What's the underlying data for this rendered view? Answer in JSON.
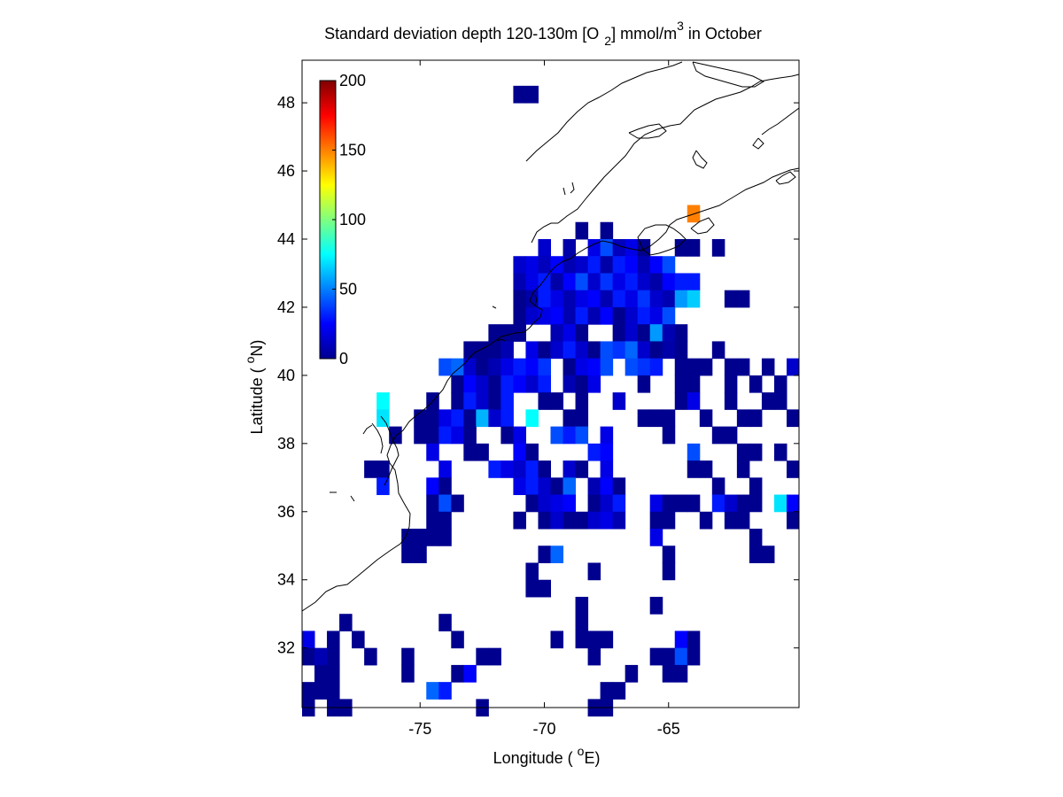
{
  "chart_data": {
    "type": "heatmap",
    "title": {
      "main": "Standard deviation depth 120-130m [O",
      "sub": "2",
      "mid": "] mmol/m",
      "sup": "3",
      "tail": " in October"
    },
    "xlabel": {
      "pre": "Longitude ( ",
      "sup": "o",
      "post": "E)"
    },
    "ylabel": {
      "pre": "Latitude ( ",
      "sup": "o",
      "post": "N)"
    },
    "xlim": [
      -79.75,
      -59.75
    ],
    "ylim": [
      30.25,
      49.25
    ],
    "xticks": [
      -75,
      -70,
      -65
    ],
    "yticks": [
      32,
      34,
      36,
      38,
      40,
      42,
      44,
      46,
      48
    ],
    "colorbar": {
      "min": 0,
      "max": 200,
      "ticks": [
        0,
        50,
        100,
        150,
        200
      ],
      "colormap": "jet"
    },
    "cell_size_deg": 0.5,
    "cells": [
      [
        -71,
        48.25,
        3
      ],
      [
        -70.5,
        48.25,
        3
      ],
      [
        -64,
        44.75,
        150
      ],
      [
        -68.5,
        44.25,
        3
      ],
      [
        -67.5,
        44.25,
        3
      ],
      [
        -70,
        43.75,
        15
      ],
      [
        -69,
        43.75,
        8
      ],
      [
        -68,
        43.75,
        20
      ],
      [
        -67.5,
        43.75,
        40
      ],
      [
        -67,
        43.75,
        12
      ],
      [
        -66.5,
        43.75,
        20
      ],
      [
        -66,
        43.75,
        3
      ],
      [
        -64.5,
        43.75,
        3
      ],
      [
        -64,
        43.75,
        3
      ],
      [
        -63,
        43.75,
        3
      ],
      [
        -71,
        43.25,
        15
      ],
      [
        -70.5,
        43.25,
        20
      ],
      [
        -70,
        43.25,
        12
      ],
      [
        -69.5,
        43.25,
        25
      ],
      [
        -69,
        43.25,
        10
      ],
      [
        -68.5,
        43.25,
        15
      ],
      [
        -68,
        43.25,
        30
      ],
      [
        -67.5,
        43.25,
        8
      ],
      [
        -67,
        43.25,
        30
      ],
      [
        -66.5,
        43.25,
        25
      ],
      [
        -66,
        43.25,
        10
      ],
      [
        -65.5,
        43.25,
        25
      ],
      [
        -65,
        43.25,
        40
      ],
      [
        -71,
        42.75,
        10
      ],
      [
        -70.5,
        42.75,
        20
      ],
      [
        -70,
        42.75,
        30
      ],
      [
        -69.5,
        42.75,
        8
      ],
      [
        -69,
        42.75,
        25
      ],
      [
        -68.5,
        42.75,
        40
      ],
      [
        -68,
        42.75,
        15
      ],
      [
        -67.5,
        42.75,
        35
      ],
      [
        -67,
        42.75,
        20
      ],
      [
        -66.5,
        42.75,
        30
      ],
      [
        -66,
        42.75,
        15
      ],
      [
        -65.5,
        42.75,
        8
      ],
      [
        -65,
        42.75,
        25
      ],
      [
        -64.5,
        42.75,
        30
      ],
      [
        -64,
        42.75,
        30
      ],
      [
        -71,
        42.25,
        3
      ],
      [
        -70.5,
        42.25,
        8
      ],
      [
        -70,
        42.25,
        30
      ],
      [
        -69.5,
        42.25,
        20
      ],
      [
        -69,
        42.25,
        10
      ],
      [
        -68.5,
        42.25,
        20
      ],
      [
        -68,
        42.25,
        25
      ],
      [
        -67.5,
        42.25,
        10
      ],
      [
        -67,
        42.25,
        30
      ],
      [
        -66.5,
        42.25,
        20
      ],
      [
        -66,
        42.25,
        35
      ],
      [
        -65.5,
        42.25,
        15
      ],
      [
        -65,
        42.25,
        10
      ],
      [
        -64.5,
        42.25,
        55
      ],
      [
        -64,
        42.25,
        65
      ],
      [
        -62.5,
        42.25,
        3
      ],
      [
        -62,
        42.25,
        3
      ],
      [
        -71,
        41.75,
        3
      ],
      [
        -70.5,
        41.75,
        15
      ],
      [
        -70,
        41.75,
        20
      ],
      [
        -69.5,
        41.75,
        25
      ],
      [
        -69,
        41.75,
        10
      ],
      [
        -68.5,
        41.75,
        30
      ],
      [
        -68,
        41.75,
        10
      ],
      [
        -67.5,
        41.75,
        25
      ],
      [
        -67,
        41.75,
        3
      ],
      [
        -66.5,
        41.75,
        15
      ],
      [
        -66,
        41.75,
        30
      ],
      [
        -65.5,
        41.75,
        20
      ],
      [
        -65,
        41.75,
        40
      ],
      [
        -72,
        41.25,
        3
      ],
      [
        -71.5,
        41.25,
        3
      ],
      [
        -71,
        41.25,
        3
      ],
      [
        -69.5,
        41.25,
        10
      ],
      [
        -69,
        41.25,
        20
      ],
      [
        -68.5,
        41.25,
        3
      ],
      [
        -67,
        41.25,
        3
      ],
      [
        -66.5,
        41.25,
        15
      ],
      [
        -66,
        41.25,
        3
      ],
      [
        -65.5,
        41.25,
        55
      ],
      [
        -65,
        41.25,
        10
      ],
      [
        -64.5,
        41.25,
        3
      ],
      [
        -73,
        40.75,
        3
      ],
      [
        -72.5,
        40.75,
        3
      ],
      [
        -72,
        40.75,
        3
      ],
      [
        -71.5,
        40.75,
        10
      ],
      [
        -70.5,
        40.75,
        20
      ],
      [
        -70,
        40.75,
        3
      ],
      [
        -69.5,
        40.75,
        15
      ],
      [
        -69,
        40.75,
        30
      ],
      [
        -68.5,
        40.75,
        15
      ],
      [
        -68,
        40.75,
        3
      ],
      [
        -67.5,
        40.75,
        40
      ],
      [
        -67,
        40.75,
        35
      ],
      [
        -66.5,
        40.75,
        45
      ],
      [
        -66,
        40.75,
        15
      ],
      [
        -65.5,
        40.75,
        3
      ],
      [
        -65,
        40.75,
        8
      ],
      [
        -64.5,
        40.75,
        3
      ],
      [
        -63,
        40.75,
        3
      ],
      [
        -74,
        40.25,
        40
      ],
      [
        -73.5,
        40.25,
        45
      ],
      [
        -73,
        40.25,
        15
      ],
      [
        -72.5,
        40.25,
        3
      ],
      [
        -72,
        40.25,
        10
      ],
      [
        -71.5,
        40.25,
        20
      ],
      [
        -71,
        40.25,
        30
      ],
      [
        -70.5,
        40.25,
        25
      ],
      [
        -70,
        40.25,
        35
      ],
      [
        -69,
        40.25,
        3
      ],
      [
        -68.5,
        40.25,
        20
      ],
      [
        -68,
        40.25,
        25
      ],
      [
        -67.5,
        40.25,
        40
      ],
      [
        -66.5,
        40.25,
        40
      ],
      [
        -66,
        40.25,
        35
      ],
      [
        -65.5,
        40.25,
        30
      ],
      [
        -64.5,
        40.25,
        3
      ],
      [
        -64,
        40.25,
        3
      ],
      [
        -63.5,
        40.25,
        3
      ],
      [
        -62.5,
        40.25,
        3
      ],
      [
        -62,
        40.25,
        3
      ],
      [
        -61,
        40.25,
        3
      ],
      [
        -60,
        40.25,
        15
      ],
      [
        -73.5,
        39.75,
        3
      ],
      [
        -73,
        39.75,
        25
      ],
      [
        -72.5,
        39.75,
        15
      ],
      [
        -72,
        39.75,
        3
      ],
      [
        -71.5,
        39.75,
        30
      ],
      [
        -71,
        39.75,
        25
      ],
      [
        -70.5,
        39.75,
        15
      ],
      [
        -70,
        39.75,
        30
      ],
      [
        -69,
        39.75,
        10
      ],
      [
        -68.5,
        39.75,
        3
      ],
      [
        -68,
        39.75,
        20
      ],
      [
        -66,
        39.75,
        3
      ],
      [
        -64.5,
        39.75,
        3
      ],
      [
        -64,
        39.75,
        3
      ],
      [
        -62.5,
        39.75,
        3
      ],
      [
        -61.5,
        39.75,
        3
      ],
      [
        -60.5,
        39.75,
        3
      ],
      [
        -76.5,
        39.25,
        75
      ],
      [
        -74.5,
        39.25,
        3
      ],
      [
        -73.5,
        39.25,
        3
      ],
      [
        -73,
        39.25,
        30
      ],
      [
        -72.5,
        39.25,
        15
      ],
      [
        -72,
        39.25,
        3
      ],
      [
        -71.5,
        39.25,
        30
      ],
      [
        -70,
        39.25,
        3
      ],
      [
        -69.5,
        39.25,
        3
      ],
      [
        -68.5,
        39.25,
        3
      ],
      [
        -67,
        39.25,
        15
      ],
      [
        -64.5,
        39.25,
        3
      ],
      [
        -64,
        39.25,
        20
      ],
      [
        -62.5,
        39.25,
        3
      ],
      [
        -61,
        39.25,
        3
      ],
      [
        -60.5,
        39.25,
        3
      ],
      [
        -76.5,
        38.75,
        70
      ],
      [
        -75,
        38.75,
        3
      ],
      [
        -74.5,
        38.75,
        3
      ],
      [
        -74,
        38.75,
        20
      ],
      [
        -73.5,
        38.75,
        30
      ],
      [
        -73,
        38.75,
        3
      ],
      [
        -72.5,
        38.75,
        60
      ],
      [
        -72,
        38.75,
        15
      ],
      [
        -71.5,
        38.75,
        30
      ],
      [
        -70.5,
        38.75,
        75
      ],
      [
        -69,
        38.75,
        3
      ],
      [
        -68.5,
        38.75,
        3
      ],
      [
        -66,
        38.75,
        3
      ],
      [
        -65.5,
        38.75,
        3
      ],
      [
        -65,
        38.75,
        3
      ],
      [
        -63.5,
        38.75,
        3
      ],
      [
        -62,
        38.75,
        3
      ],
      [
        -61.5,
        38.75,
        3
      ],
      [
        -60,
        38.75,
        3
      ],
      [
        -76,
        38.25,
        3
      ],
      [
        -75,
        38.25,
        3
      ],
      [
        -74.5,
        38.25,
        3
      ],
      [
        -74,
        38.25,
        30
      ],
      [
        -73.5,
        38.25,
        20
      ],
      [
        -73,
        38.25,
        3
      ],
      [
        -71.5,
        38.25,
        3
      ],
      [
        -71,
        38.25,
        20
      ],
      [
        -69.5,
        38.25,
        40
      ],
      [
        -69,
        38.25,
        30
      ],
      [
        -68.5,
        38.25,
        40
      ],
      [
        -67.5,
        38.25,
        20
      ],
      [
        -65,
        38.25,
        3
      ],
      [
        -63,
        38.25,
        3
      ],
      [
        -62.5,
        38.25,
        3
      ],
      [
        -74.5,
        37.75,
        20
      ],
      [
        -73,
        37.75,
        3
      ],
      [
        -72.5,
        37.75,
        3
      ],
      [
        -71,
        37.75,
        25
      ],
      [
        -70.5,
        37.75,
        3
      ],
      [
        -68,
        37.75,
        30
      ],
      [
        -67.5,
        37.75,
        25
      ],
      [
        -64,
        37.75,
        40
      ],
      [
        -62,
        37.75,
        3
      ],
      [
        -61.5,
        37.75,
        3
      ],
      [
        -60.5,
        37.75,
        3
      ],
      [
        -77,
        37.25,
        3
      ],
      [
        -76.5,
        37.25,
        3
      ],
      [
        -74,
        37.25,
        20
      ],
      [
        -72,
        37.25,
        30
      ],
      [
        -71.5,
        37.25,
        20
      ],
      [
        -71,
        37.25,
        15
      ],
      [
        -70.5,
        37.25,
        30
      ],
      [
        -70,
        37.25,
        3
      ],
      [
        -69,
        37.25,
        15
      ],
      [
        -68.5,
        37.25,
        3
      ],
      [
        -67.5,
        37.25,
        20
      ],
      [
        -64,
        37.25,
        3
      ],
      [
        -63.5,
        37.25,
        3
      ],
      [
        -62,
        37.25,
        3
      ],
      [
        -60,
        37.25,
        3
      ],
      [
        -76.5,
        36.75,
        30
      ],
      [
        -74.5,
        36.75,
        25
      ],
      [
        -74,
        36.75,
        3
      ],
      [
        -71,
        36.75,
        20
      ],
      [
        -70.5,
        36.75,
        30
      ],
      [
        -70,
        36.75,
        15
      ],
      [
        -69.5,
        36.75,
        3
      ],
      [
        -69,
        36.75,
        45
      ],
      [
        -68,
        36.75,
        10
      ],
      [
        -67.5,
        36.75,
        25
      ],
      [
        -67,
        36.75,
        3
      ],
      [
        -63,
        36.75,
        3
      ],
      [
        -61.5,
        36.75,
        3
      ],
      [
        -74.5,
        36.25,
        3
      ],
      [
        -74,
        36.25,
        40
      ],
      [
        -73.5,
        36.25,
        3
      ],
      [
        -70.5,
        36.25,
        3
      ],
      [
        -70,
        36.25,
        15
      ],
      [
        -69.5,
        36.25,
        20
      ],
      [
        -69,
        36.25,
        25
      ],
      [
        -68,
        36.25,
        3
      ],
      [
        -67.5,
        36.25,
        15
      ],
      [
        -67,
        36.25,
        30
      ],
      [
        -65.5,
        36.25,
        20
      ],
      [
        -65,
        36.25,
        3
      ],
      [
        -64.5,
        36.25,
        3
      ],
      [
        -64,
        36.25,
        3
      ],
      [
        -63,
        36.25,
        30
      ],
      [
        -62.5,
        36.25,
        15
      ],
      [
        -62,
        36.25,
        3
      ],
      [
        -61.5,
        36.25,
        3
      ],
      [
        -60.5,
        36.25,
        70
      ],
      [
        -60,
        36.25,
        25
      ],
      [
        -74.5,
        35.75,
        3
      ],
      [
        -74,
        35.75,
        3
      ],
      [
        -71,
        35.75,
        3
      ],
      [
        -70,
        35.75,
        3
      ],
      [
        -69.5,
        35.75,
        15
      ],
      [
        -69,
        35.75,
        3
      ],
      [
        -68.5,
        35.75,
        3
      ],
      [
        -68,
        35.75,
        15
      ],
      [
        -67.5,
        35.75,
        20
      ],
      [
        -67,
        35.75,
        10
      ],
      [
        -65.5,
        35.75,
        3
      ],
      [
        -65,
        35.75,
        3
      ],
      [
        -63.5,
        35.75,
        3
      ],
      [
        -62.5,
        35.75,
        3
      ],
      [
        -62,
        35.75,
        3
      ],
      [
        -60,
        35.75,
        3
      ],
      [
        -75.5,
        35.25,
        3
      ],
      [
        -75,
        35.25,
        3
      ],
      [
        -74.5,
        35.25,
        3
      ],
      [
        -74,
        35.25,
        3
      ],
      [
        -65.5,
        35.25,
        20
      ],
      [
        -61.5,
        35.25,
        3
      ],
      [
        -75.5,
        34.75,
        3
      ],
      [
        -75,
        34.75,
        3
      ],
      [
        -70,
        34.75,
        3
      ],
      [
        -69.5,
        34.75,
        45
      ],
      [
        -65,
        34.75,
        3
      ],
      [
        -61.5,
        34.75,
        3
      ],
      [
        -61,
        34.75,
        3
      ],
      [
        -70.5,
        34.25,
        3
      ],
      [
        -68,
        34.25,
        3
      ],
      [
        -65,
        34.25,
        3
      ],
      [
        -70.5,
        33.75,
        3
      ],
      [
        -70,
        33.75,
        3
      ],
      [
        -68.5,
        33.25,
        3
      ],
      [
        -65.5,
        33.25,
        3
      ],
      [
        -78,
        32.75,
        3
      ],
      [
        -74,
        32.75,
        3
      ],
      [
        -68.5,
        32.75,
        3
      ],
      [
        -79.5,
        32.25,
        20
      ],
      [
        -78.5,
        32.25,
        3
      ],
      [
        -77.5,
        32.25,
        3
      ],
      [
        -73.5,
        32.25,
        3
      ],
      [
        -69.5,
        32.25,
        3
      ],
      [
        -68.5,
        32.25,
        3
      ],
      [
        -68,
        32.25,
        3
      ],
      [
        -67.5,
        32.25,
        3
      ],
      [
        -64.5,
        32.25,
        25
      ],
      [
        -64,
        32.25,
        3
      ],
      [
        -79.5,
        31.75,
        3
      ],
      [
        -79,
        31.75,
        10
      ],
      [
        -78.5,
        31.75,
        3
      ],
      [
        -77,
        31.75,
        3
      ],
      [
        -75.5,
        31.75,
        3
      ],
      [
        -72.5,
        31.75,
        3
      ],
      [
        -72,
        31.75,
        3
      ],
      [
        -68,
        31.75,
        3
      ],
      [
        -65.5,
        31.75,
        3
      ],
      [
        -65,
        31.75,
        3
      ],
      [
        -64.5,
        31.75,
        40
      ],
      [
        -64,
        31.75,
        3
      ],
      [
        -79,
        31.25,
        3
      ],
      [
        -78.5,
        31.25,
        3
      ],
      [
        -75.5,
        31.25,
        3
      ],
      [
        -73.5,
        31.25,
        3
      ],
      [
        -73,
        31.25,
        25
      ],
      [
        -66.5,
        31.25,
        3
      ],
      [
        -65,
        31.25,
        3
      ],
      [
        -64.5,
        31.25,
        3
      ],
      [
        -79.5,
        30.75,
        3
      ],
      [
        -79,
        30.75,
        3
      ],
      [
        -78.5,
        30.75,
        3
      ],
      [
        -74.5,
        30.75,
        45
      ],
      [
        -74,
        30.75,
        30
      ],
      [
        -67.5,
        30.75,
        3
      ],
      [
        -67,
        30.75,
        3
      ],
      [
        -79.5,
        30.25,
        3
      ],
      [
        -78.5,
        30.25,
        3
      ],
      [
        -78,
        30.25,
        3
      ],
      [
        -72.5,
        30.25,
        3
      ],
      [
        -68,
        30.25,
        3
      ],
      [
        -67.5,
        30.25,
        3
      ]
    ]
  }
}
